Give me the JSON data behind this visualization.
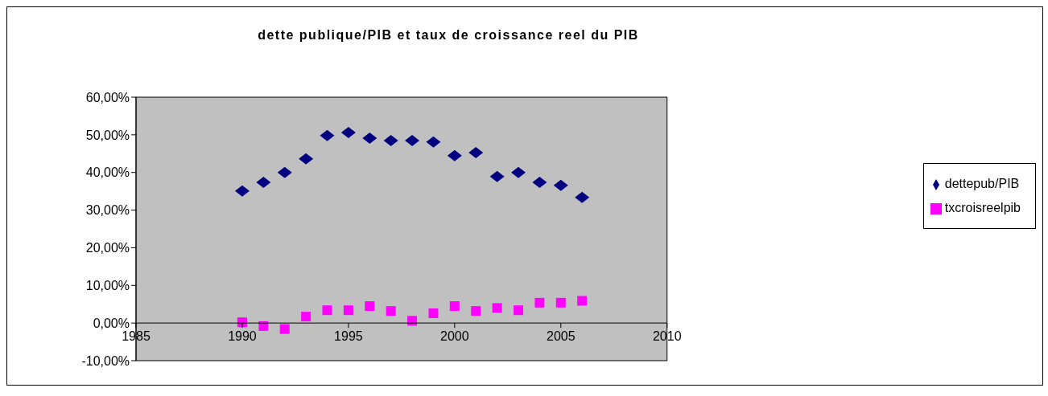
{
  "chart_data": {
    "type": "scatter",
    "title": "dette publique/PIB et taux de croissance reel du PIB",
    "series": [
      {
        "name": "dettepub/PIB",
        "color": "#000080",
        "marker": "diamond",
        "x": [
          1990,
          1991,
          1992,
          1993,
          1994,
          1995,
          1996,
          1997,
          1998,
          1999,
          2000,
          2001,
          2002,
          2003,
          2004,
          2005,
          2006
        ],
        "values": [
          35.1,
          37.4,
          40.0,
          43.6,
          49.8,
          50.6,
          49.1,
          48.5,
          48.5,
          48.1,
          44.5,
          45.3,
          38.9,
          40.0,
          37.4,
          36.6,
          33.4
        ]
      },
      {
        "name": "txcroisreelpib",
        "color": "#ff00ff",
        "marker": "square",
        "x": [
          1990,
          1991,
          1992,
          1993,
          1994,
          1995,
          1996,
          1997,
          1998,
          1999,
          2000,
          2001,
          2002,
          2003,
          2004,
          2005,
          2006
        ],
        "values": [
          0.2,
          -0.8,
          -1.6,
          1.7,
          3.4,
          3.4,
          4.5,
          3.2,
          0.6,
          2.6,
          4.5,
          3.2,
          4.0,
          3.4,
          5.4,
          5.4,
          5.9
        ]
      }
    ],
    "xlim": [
      1985,
      2010
    ],
    "xticks": [
      1985,
      1990,
      1995,
      2000,
      2005,
      2010
    ],
    "ylim": [
      -10,
      60
    ],
    "yticks": [
      {
        "value": -10,
        "label": "-10,00%"
      },
      {
        "value": 0,
        "label": "0,00%"
      },
      {
        "value": 10,
        "label": "10,00%"
      },
      {
        "value": 20,
        "label": "20,00%"
      },
      {
        "value": 30,
        "label": "30,00%"
      },
      {
        "value": 40,
        "label": "40,00%"
      },
      {
        "value": 50,
        "label": "50,00%"
      },
      {
        "value": 60,
        "label": "60,00%"
      }
    ],
    "grid": false,
    "legend": "right"
  }
}
